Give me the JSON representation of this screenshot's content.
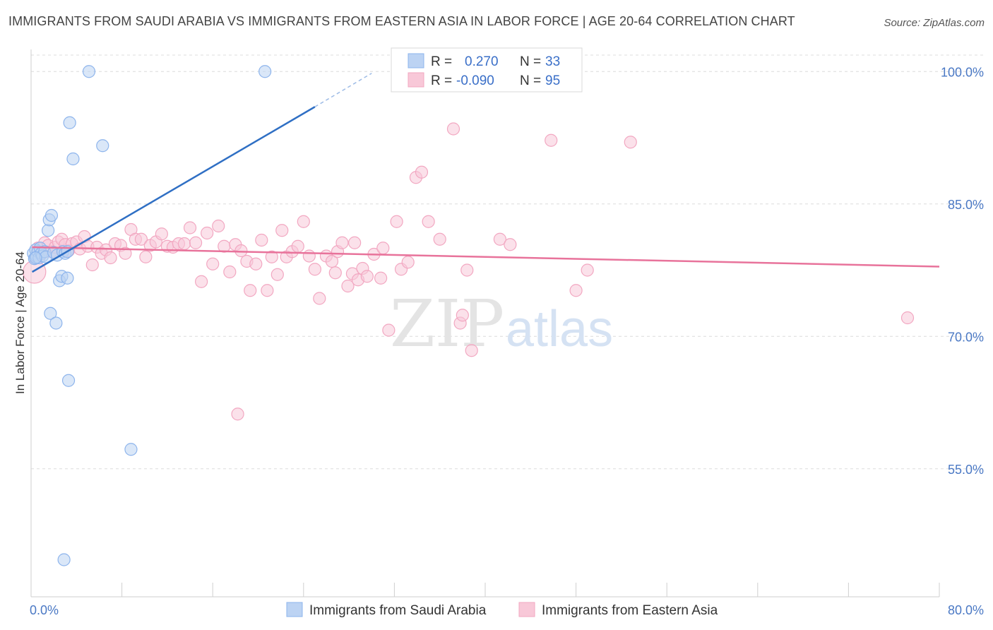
{
  "title": "IMMIGRANTS FROM SAUDI ARABIA VS IMMIGRANTS FROM EASTERN ASIA IN LABOR FORCE | AGE 20-64 CORRELATION CHART",
  "source": "Source: ZipAtlas.com",
  "watermark": {
    "zip": "ZIP",
    "atlas": "atlas"
  },
  "legend": {
    "r_label": "R =",
    "n_label": "N =",
    "rows": [
      {
        "r": "0.270",
        "n": "33"
      },
      {
        "r": "-0.090",
        "n": "95"
      }
    ]
  },
  "chart_data": {
    "type": "scatter",
    "title": "IMMIGRANTS FROM SAUDI ARABIA VS IMMIGRANTS FROM EASTERN ASIA IN LABOR FORCE | AGE 20-64 CORRELATION CHART",
    "xlabel": "",
    "ylabel": "In Labor Force | Age 20-64",
    "xlim": [
      0,
      80
    ],
    "ylim": [
      40.5,
      102.5
    ],
    "x_tick_labels": [
      "0.0%",
      "80.0%"
    ],
    "y_ticks": [
      55,
      70,
      85,
      100
    ],
    "y_tick_labels": [
      "55.0%",
      "70.0%",
      "85.0%",
      "100.0%"
    ],
    "grid": true,
    "legend_position": "top-center",
    "series": [
      {
        "name": "Immigrants from Saudi Arabia",
        "color": "#8db4ec",
        "fill": "#bcd3f3",
        "r": 0.27,
        "n": 33,
        "trend": {
          "x0": 0.1,
          "y0": 77.3,
          "x1": 25.0,
          "y1": 96.0,
          "dash_to_x": 30.0,
          "dash_to_y": 99.8
        },
        "points": [
          [
            0.2,
            79.4
          ],
          [
            0.3,
            78.8
          ],
          [
            0.4,
            79.8
          ],
          [
            0.5,
            79.0
          ],
          [
            0.6,
            79.6
          ],
          [
            0.7,
            78.9
          ],
          [
            0.8,
            80.0
          ],
          [
            0.9,
            79.4
          ],
          [
            1.0,
            79.1
          ],
          [
            1.2,
            79.6
          ],
          [
            1.3,
            79.0
          ],
          [
            1.5,
            82.0
          ],
          [
            1.6,
            83.2
          ],
          [
            1.8,
            83.7
          ],
          [
            2.0,
            79.5
          ],
          [
            2.3,
            79.2
          ],
          [
            2.5,
            76.3
          ],
          [
            2.7,
            76.8
          ],
          [
            2.8,
            79.6
          ],
          [
            3.0,
            79.4
          ],
          [
            3.2,
            76.6
          ],
          [
            1.7,
            72.6
          ],
          [
            2.2,
            71.5
          ],
          [
            3.2,
            79.6
          ],
          [
            3.3,
            65.0
          ],
          [
            3.4,
            94.2
          ],
          [
            3.7,
            90.1
          ],
          [
            5.1,
            100.0
          ],
          [
            6.3,
            91.6
          ],
          [
            8.8,
            57.2
          ],
          [
            20.6,
            100.0
          ],
          [
            2.9,
            44.7
          ],
          [
            0.4,
            78.9
          ]
        ]
      },
      {
        "name": "Immigrants from Eastern Asia",
        "color": "#f2a7c1",
        "fill": "#f8c8d8",
        "r": -0.09,
        "n": 95,
        "trend": {
          "x0": 0.1,
          "y0": 80.1,
          "x1": 80.0,
          "y1": 77.9
        },
        "points": [
          [
            0.3,
            77.3
          ],
          [
            0.6,
            80.0
          ],
          [
            0.9,
            79.3
          ],
          [
            1.2,
            80.6
          ],
          [
            1.5,
            80.3
          ],
          [
            1.8,
            79.6
          ],
          [
            2.1,
            80.1
          ],
          [
            2.4,
            80.7
          ],
          [
            2.7,
            81.0
          ],
          [
            3.0,
            80.4
          ],
          [
            3.3,
            79.7
          ],
          [
            3.6,
            80.5
          ],
          [
            4.0,
            80.7
          ],
          [
            4.3,
            79.9
          ],
          [
            4.7,
            81.3
          ],
          [
            5.0,
            80.2
          ],
          [
            5.4,
            78.1
          ],
          [
            5.8,
            80.1
          ],
          [
            6.2,
            79.4
          ],
          [
            6.6,
            79.8
          ],
          [
            7.0,
            78.9
          ],
          [
            7.4,
            80.5
          ],
          [
            7.9,
            80.3
          ],
          [
            8.3,
            79.4
          ],
          [
            8.8,
            82.1
          ],
          [
            9.2,
            81.0
          ],
          [
            9.7,
            81.0
          ],
          [
            10.1,
            79.0
          ],
          [
            10.5,
            80.3
          ],
          [
            11.0,
            80.7
          ],
          [
            11.5,
            81.6
          ],
          [
            12.0,
            80.2
          ],
          [
            12.5,
            80.1
          ],
          [
            13.0,
            80.5
          ],
          [
            13.5,
            80.5
          ],
          [
            14.0,
            82.3
          ],
          [
            14.5,
            80.6
          ],
          [
            15.0,
            76.2
          ],
          [
            15.5,
            81.7
          ],
          [
            16.0,
            78.2
          ],
          [
            16.5,
            82.5
          ],
          [
            17.0,
            80.2
          ],
          [
            17.5,
            77.3
          ],
          [
            18.0,
            80.4
          ],
          [
            18.5,
            79.7
          ],
          [
            19.0,
            78.5
          ],
          [
            19.3,
            75.2
          ],
          [
            19.8,
            78.2
          ],
          [
            20.3,
            80.9
          ],
          [
            20.8,
            75.2
          ],
          [
            21.2,
            79.0
          ],
          [
            21.7,
            77.0
          ],
          [
            22.1,
            82.0
          ],
          [
            22.5,
            79.0
          ],
          [
            23.0,
            79.6
          ],
          [
            23.5,
            80.2
          ],
          [
            24.0,
            83.0
          ],
          [
            24.5,
            79.1
          ],
          [
            25.0,
            77.6
          ],
          [
            25.4,
            74.3
          ],
          [
            26.0,
            79.1
          ],
          [
            26.5,
            78.5
          ],
          [
            27.0,
            79.6
          ],
          [
            27.4,
            80.6
          ],
          [
            27.9,
            75.7
          ],
          [
            28.3,
            77.1
          ],
          [
            28.8,
            76.4
          ],
          [
            29.2,
            77.7
          ],
          [
            29.6,
            76.8
          ],
          [
            30.2,
            79.3
          ],
          [
            30.8,
            76.6
          ],
          [
            31.5,
            70.7
          ],
          [
            32.2,
            83.0
          ],
          [
            32.6,
            77.6
          ],
          [
            33.2,
            78.4
          ],
          [
            33.9,
            88.0
          ],
          [
            34.4,
            88.6
          ],
          [
            36.0,
            81.0
          ],
          [
            37.2,
            93.5
          ],
          [
            37.8,
            71.5
          ],
          [
            38.0,
            72.4
          ],
          [
            38.4,
            77.5
          ],
          [
            38.8,
            68.4
          ],
          [
            41.3,
            81.0
          ],
          [
            42.2,
            80.4
          ],
          [
            45.8,
            92.2
          ],
          [
            48.0,
            75.2
          ],
          [
            49.0,
            77.5
          ],
          [
            52.8,
            92.0
          ],
          [
            77.2,
            72.1
          ],
          [
            18.2,
            61.2
          ],
          [
            28.5,
            80.6
          ],
          [
            35.0,
            83.0
          ],
          [
            26.8,
            77.2
          ],
          [
            31.0,
            80.0
          ]
        ]
      }
    ]
  },
  "bottom_legend": [
    "Immigrants from Saudi Arabia",
    "Immigrants from Eastern Asia"
  ]
}
